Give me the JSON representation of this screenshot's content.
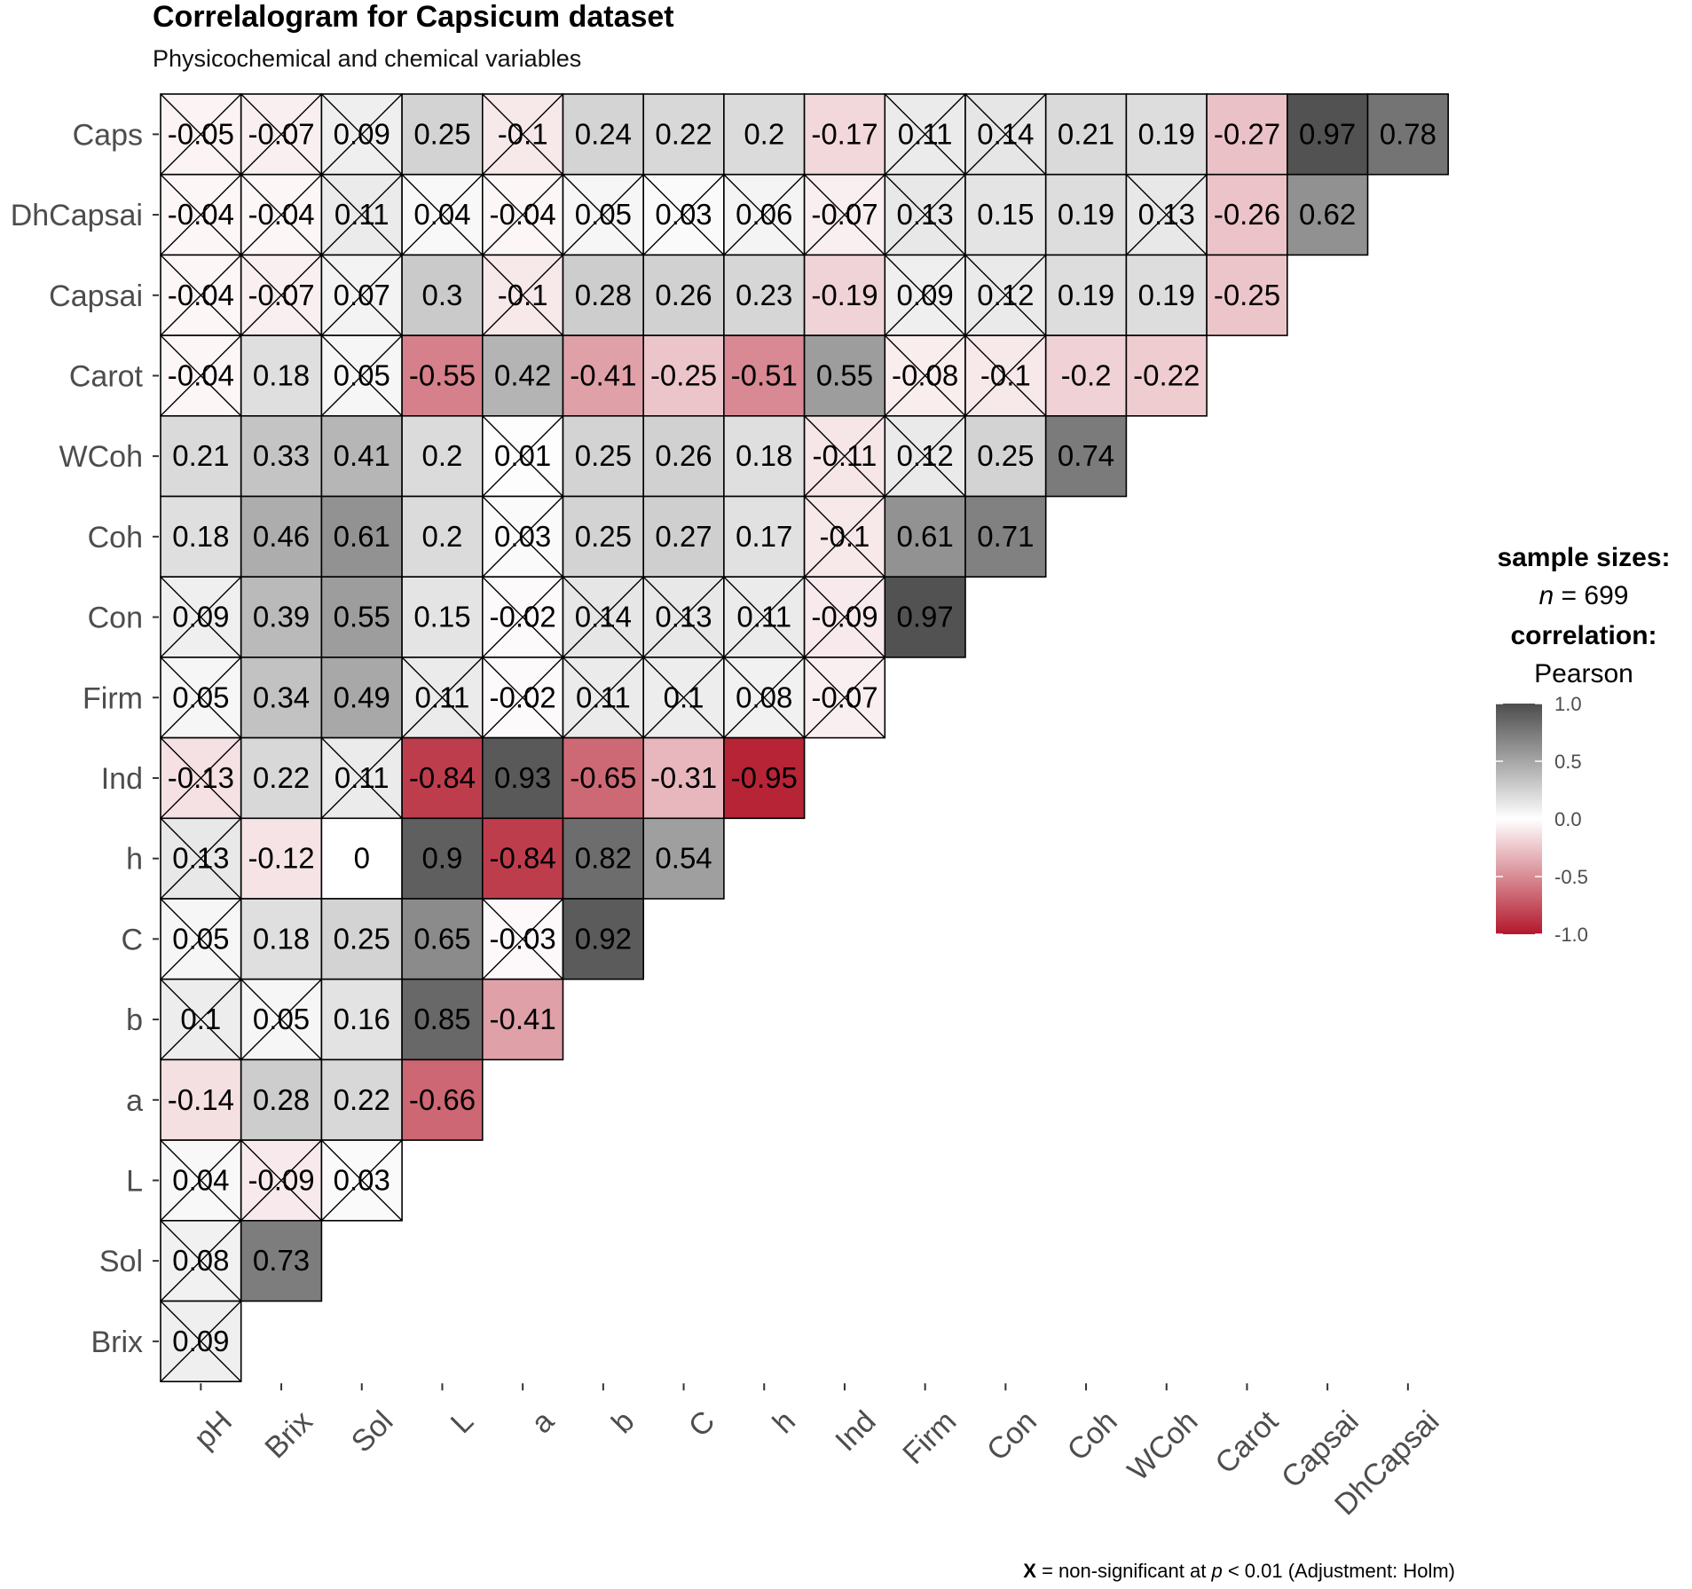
{
  "chart_data": {
    "type": "heatmap",
    "title": "Correlalogram for Capsicum dataset",
    "subtitle": "Physicochemical and chemical variables",
    "x_labels": [
      "pH",
      "Brix",
      "Sol",
      "L",
      "a",
      "b",
      "C",
      "h",
      "Ind",
      "Firm",
      "Con",
      "Coh",
      "WCoh",
      "Carot",
      "Capsai",
      "DhCapsai"
    ],
    "y_labels": [
      "Caps",
      "DhCapsai",
      "Capsai",
      "Carot",
      "WCoh",
      "Coh",
      "Con",
      "Firm",
      "Ind",
      "h",
      "C",
      "b",
      "a",
      "L",
      "Sol",
      "Brix"
    ],
    "rows": [
      {
        "values": [
          -0.05,
          -0.07,
          0.09,
          0.25,
          -0.1,
          0.24,
          0.22,
          0.2,
          -0.17,
          0.11,
          0.14,
          0.21,
          0.19,
          -0.27,
          0.97,
          0.78
        ],
        "labels": [
          "-0.05",
          "-0.07",
          "0.09",
          "0.25",
          "-0.1",
          "0.24",
          "0.22",
          "0.2",
          "-0.17",
          "0.11",
          "0.14",
          "0.21",
          "0.19",
          "-0.27",
          "0.97",
          "0.78"
        ],
        "nonsig": [
          1,
          1,
          1,
          0,
          1,
          0,
          0,
          0,
          0,
          1,
          1,
          0,
          0,
          0,
          0,
          0
        ]
      },
      {
        "values": [
          -0.04,
          -0.04,
          0.11,
          0.04,
          -0.04,
          0.05,
          0.03,
          0.06,
          -0.07,
          0.13,
          0.15,
          0.19,
          0.13,
          -0.26,
          0.62
        ],
        "labels": [
          "-0.04",
          "-0.04",
          "0.11",
          "0.04",
          "-0.04",
          "0.05",
          "0.03",
          "0.06",
          "-0.07",
          "0.13",
          "0.15",
          "0.19",
          "0.13",
          "-0.26",
          "0.62"
        ],
        "nonsig": [
          1,
          1,
          1,
          1,
          1,
          1,
          1,
          1,
          1,
          1,
          0,
          0,
          1,
          0,
          0
        ]
      },
      {
        "values": [
          -0.04,
          -0.07,
          0.07,
          0.3,
          -0.1,
          0.28,
          0.26,
          0.23,
          -0.19,
          0.09,
          0.12,
          0.19,
          0.19,
          -0.25
        ],
        "labels": [
          "-0.04",
          "-0.07",
          "0.07",
          "0.3",
          "-0.1",
          "0.28",
          "0.26",
          "0.23",
          "-0.19",
          "0.09",
          "0.12",
          "0.19",
          "0.19",
          "-0.25"
        ],
        "nonsig": [
          1,
          1,
          1,
          0,
          1,
          0,
          0,
          0,
          0,
          1,
          1,
          0,
          0,
          0
        ]
      },
      {
        "values": [
          -0.04,
          0.18,
          0.05,
          -0.55,
          0.42,
          -0.41,
          -0.25,
          -0.51,
          0.55,
          -0.08,
          -0.1,
          -0.2,
          -0.22
        ],
        "labels": [
          "-0.04",
          "0.18",
          "0.05",
          "-0.55",
          "0.42",
          "-0.41",
          "-0.25",
          "-0.51",
          "0.55",
          "-0.08",
          "-0.1",
          "-0.2",
          "-0.22"
        ],
        "nonsig": [
          1,
          0,
          1,
          0,
          0,
          0,
          0,
          0,
          0,
          1,
          1,
          0,
          0
        ]
      },
      {
        "values": [
          0.21,
          0.33,
          0.41,
          0.2,
          0.01,
          0.25,
          0.26,
          0.18,
          -0.11,
          0.12,
          0.25,
          0.74
        ],
        "labels": [
          "0.21",
          "0.33",
          "0.41",
          "0.2",
          "0.01",
          "0.25",
          "0.26",
          "0.18",
          "-0.11",
          "0.12",
          "0.25",
          "0.74"
        ],
        "nonsig": [
          0,
          0,
          0,
          0,
          1,
          0,
          0,
          0,
          1,
          1,
          0,
          0
        ]
      },
      {
        "values": [
          0.18,
          0.46,
          0.61,
          0.2,
          0.03,
          0.25,
          0.27,
          0.17,
          -0.1,
          0.61,
          0.71
        ],
        "labels": [
          "0.18",
          "0.46",
          "0.61",
          "0.2",
          "0.03",
          "0.25",
          "0.27",
          "0.17",
          "-0.1",
          "0.61",
          "0.71"
        ],
        "nonsig": [
          0,
          0,
          0,
          0,
          1,
          0,
          0,
          0,
          1,
          0,
          0
        ]
      },
      {
        "values": [
          0.09,
          0.39,
          0.55,
          0.15,
          -0.02,
          0.14,
          0.13,
          0.11,
          -0.09,
          0.97
        ],
        "labels": [
          "0.09",
          "0.39",
          "0.55",
          "0.15",
          "-0.02",
          "0.14",
          "0.13",
          "0.11",
          "-0.09",
          "0.97"
        ],
        "nonsig": [
          1,
          0,
          0,
          0,
          1,
          1,
          1,
          1,
          1,
          0
        ]
      },
      {
        "values": [
          0.05,
          0.34,
          0.49,
          0.11,
          -0.02,
          0.11,
          0.1,
          0.08,
          -0.07
        ],
        "labels": [
          "0.05",
          "0.34",
          "0.49",
          "0.11",
          "-0.02",
          "0.11",
          "0.1",
          "0.08",
          "-0.07"
        ],
        "nonsig": [
          1,
          0,
          0,
          1,
          1,
          1,
          1,
          1,
          1
        ]
      },
      {
        "values": [
          -0.13,
          0.22,
          0.11,
          -0.84,
          0.93,
          -0.65,
          -0.31,
          -0.95
        ],
        "labels": [
          "-0.13",
          "0.22",
          "0.11",
          "-0.84",
          "0.93",
          "-0.65",
          "-0.31",
          "-0.95"
        ],
        "nonsig": [
          1,
          0,
          1,
          0,
          0,
          0,
          0,
          0
        ]
      },
      {
        "values": [
          0.13,
          -0.12,
          0.0,
          0.9,
          -0.84,
          0.82,
          0.54
        ],
        "labels": [
          "0.13",
          "-0.12",
          "0",
          "0.9",
          "-0.84",
          "0.82",
          "0.54"
        ],
        "nonsig": [
          1,
          0,
          0,
          0,
          0,
          0,
          0
        ]
      },
      {
        "values": [
          0.05,
          0.18,
          0.25,
          0.65,
          -0.03,
          0.92
        ],
        "labels": [
          "0.05",
          "0.18",
          "0.25",
          "0.65",
          "-0.03",
          "0.92"
        ],
        "nonsig": [
          1,
          0,
          0,
          0,
          1,
          0
        ]
      },
      {
        "values": [
          0.1,
          0.05,
          0.16,
          0.85,
          -0.41
        ],
        "labels": [
          "0.1",
          "0.05",
          "0.16",
          "0.85",
          "-0.41"
        ],
        "nonsig": [
          1,
          1,
          0,
          0,
          0
        ]
      },
      {
        "values": [
          -0.14,
          0.28,
          0.22,
          -0.66
        ],
        "labels": [
          "-0.14",
          "0.28",
          "0.22",
          "-0.66"
        ],
        "nonsig": [
          0,
          0,
          0,
          0
        ]
      },
      {
        "values": [
          0.04,
          -0.09,
          0.03
        ],
        "labels": [
          "0.04",
          "-0.09",
          "0.03"
        ],
        "nonsig": [
          1,
          1,
          1
        ]
      },
      {
        "values": [
          0.08,
          0.73
        ],
        "labels": [
          "0.08",
          "0.73"
        ],
        "nonsig": [
          1,
          0
        ]
      },
      {
        "values": [
          0.09
        ],
        "labels": [
          "0.09"
        ],
        "nonsig": [
          1
        ]
      }
    ],
    "scale": {
      "min": -1.0,
      "max": 1.0,
      "ticks": [
        1.0,
        0.5,
        0.0,
        -0.5,
        -1.0
      ],
      "tick_labels": [
        "1.0",
        "0.5",
        "0.0",
        "-0.5",
        "-1.0"
      ]
    },
    "colors": {
      "low": "#B2182B",
      "mid": "#FFFFFF",
      "high": "#4D4D4D"
    },
    "legend": {
      "line1": "sample sizes:",
      "line2_var": "n",
      "line2_rest": " = 699",
      "line3": "correlation:",
      "line4": "Pearson"
    },
    "caption": {
      "marker": "X",
      "text1": " = non-significant at ",
      "var": "p",
      "text2": " < 0.01 (Adjustment: Holm)"
    }
  }
}
